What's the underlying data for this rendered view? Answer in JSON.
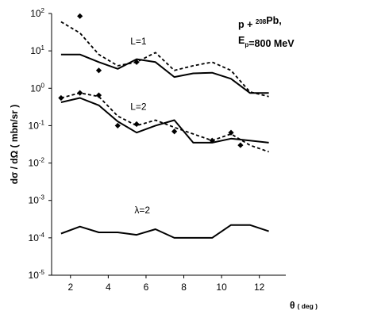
{
  "chart_data": {
    "type": "line",
    "title_lines": [
      {
        "parts": [
          {
            "text": "p + "
          },
          {
            "text": "208",
            "sup": true
          },
          {
            "text": "Pb,"
          }
        ]
      },
      {
        "parts": [
          {
            "text": "E"
          },
          {
            "text": "p",
            "sub": true
          },
          {
            "text": "=800 MeV"
          }
        ]
      }
    ],
    "ylabel": "dσ / dΩ ( mbn/sr )",
    "xlabel": "θ",
    "xlabel_unit": "( deg )",
    "y_scale": "log",
    "xlim": [
      1.0,
      13.4
    ],
    "ylim_exp": [
      -5,
      2
    ],
    "x_ticks": [
      2,
      4,
      6,
      8,
      10,
      12
    ],
    "y_ticks": [
      {
        "base": "10",
        "exp": "2"
      },
      {
        "base": "10",
        "exp": "1"
      },
      {
        "base": "10",
        "exp": "0"
      },
      {
        "base": "10",
        "exp": "-1"
      },
      {
        "base": "10",
        "exp": "-2"
      },
      {
        "base": "10",
        "exp": "-3"
      },
      {
        "base": "10",
        "exp": "-4"
      },
      {
        "base": "10",
        "exp": "-5"
      }
    ],
    "annotations": [
      {
        "text": "L=1",
        "x": 5.6,
        "y": 18
      },
      {
        "text": "L=2",
        "x": 5.6,
        "y": 0.32
      },
      {
        "text": "λ=2",
        "x": 5.8,
        "y": 0.00055
      }
    ],
    "series": [
      {
        "style": "solid",
        "x": [
          1.5,
          2.5,
          3.5,
          4.5,
          5.5,
          6.5,
          7.5,
          8.5,
          9.5,
          10.5,
          11.5,
          12.5
        ],
        "y": [
          8,
          8,
          5,
          3.3,
          6,
          5,
          2,
          2.5,
          2.6,
          1.8,
          0.75,
          0.75
        ]
      },
      {
        "style": "dashed",
        "x": [
          1.5,
          2.5,
          3.5,
          4.5,
          5.5,
          6.5,
          7.5,
          8.5,
          9.5,
          10.5,
          11.5,
          12.5
        ],
        "y": [
          60,
          30,
          8,
          4,
          5,
          9,
          3,
          4,
          5,
          3,
          0.8,
          0.6
        ]
      },
      {
        "style": "markers",
        "x": [
          2.5,
          3.5,
          5.5
        ],
        "y": [
          85,
          3,
          5
        ]
      },
      {
        "style": "solid",
        "x": [
          1.5,
          2.5,
          3.5,
          4.5,
          5.5,
          6.5,
          7.5,
          8.5,
          9.5,
          10.5,
          11.5,
          12.5
        ],
        "y": [
          0.42,
          0.55,
          0.35,
          0.13,
          0.065,
          0.1,
          0.14,
          0.035,
          0.035,
          0.045,
          0.04,
          0.035
        ]
      },
      {
        "style": "dashed",
        "x": [
          1.5,
          2.5,
          3.5,
          4.5,
          5.5,
          6.5,
          7.5,
          8.5,
          9.5,
          10.5,
          11.5,
          12.5
        ],
        "y": [
          0.55,
          0.75,
          0.6,
          0.18,
          0.1,
          0.14,
          0.09,
          0.06,
          0.04,
          0.06,
          0.03,
          0.02
        ]
      },
      {
        "style": "markers",
        "x": [
          1.5,
          2.5,
          3.5,
          4.5,
          5.5,
          7.5,
          9.5,
          10.5,
          11.0
        ],
        "y": [
          0.55,
          0.75,
          0.65,
          0.1,
          0.11,
          0.07,
          0.04,
          0.065,
          0.03
        ]
      },
      {
        "style": "solid",
        "x": [
          1.5,
          2.5,
          3.5,
          4.5,
          5.5,
          6.5,
          7.5,
          8.5,
          9.5,
          10.5,
          11.5,
          12.5
        ],
        "y": [
          0.00013,
          0.0002,
          0.00014,
          0.00014,
          0.00012,
          0.00017,
          0.0001,
          0.0001,
          0.0001,
          0.00022,
          0.00022,
          0.00015
        ]
      }
    ]
  }
}
